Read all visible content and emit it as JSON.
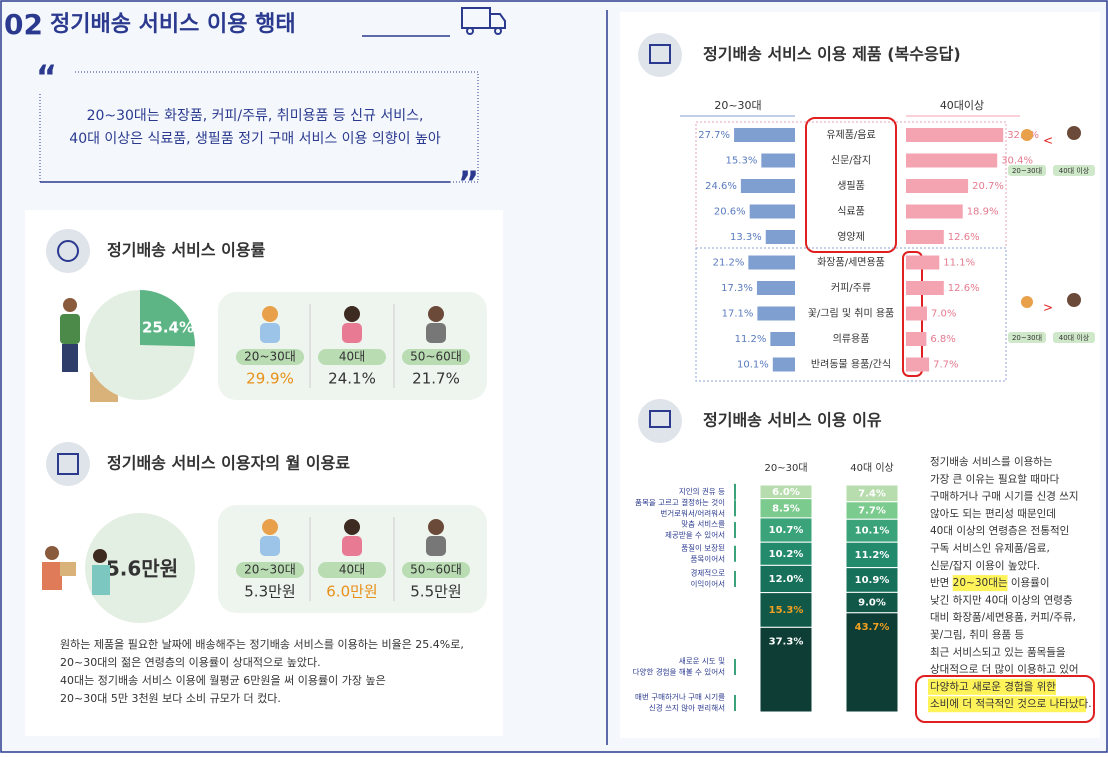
{
  "header": {
    "number": "02",
    "title": "정기배송 서비스 이용 행태"
  },
  "quote": {
    "lines": [
      "20~30대는 화장품, 커피/주류, 취미용품 등 신규 서비스,",
      "40대 이상은 식료품, 생필품 정기 구매 서비스 이용 의향이 높아"
    ]
  },
  "usage": {
    "title": "정기배송 서비스 이용률",
    "overall": {
      "value": 25.4,
      "label": "25.4%"
    },
    "groups": [
      {
        "age": "20~30대",
        "value": "29.9%"
      },
      {
        "age": "40대",
        "value": "24.1%"
      },
      {
        "age": "50~60대",
        "value": "21.7%"
      }
    ]
  },
  "fee": {
    "title": "정기배송 서비스 이용자의 월 이용료",
    "overall": "5.6만원",
    "groups": [
      {
        "age": "20~30대",
        "value": "5.3만원"
      },
      {
        "age": "40대",
        "value": "6.0만원"
      },
      {
        "age": "50~60대",
        "value": "5.5만원"
      }
    ]
  },
  "note": {
    "lines": [
      "원하는 제품을 필요한 날짜에 배송해주는 정기배송 서비스를 이용하는 비율은 25.4%로,",
      "20~30대의 젊은 연령층의 이용률이 상대적으로 높았다.",
      "40대는 정기배송 서비스 이용에 월평균 6만원을 써 이용률이 가장 높은",
      "20~30대 5만 3천원 보다 소비 규모가 더 컸다."
    ]
  },
  "products": {
    "title": "정기배송 서비스 이용 제품 (복수응답)",
    "categories": [
      "유제품/음료",
      "신문/잡지",
      "생필품",
      "식료품",
      "영양제",
      "화장품/세면용품",
      "커피/주류",
      "꽃/그림 및 취미 용품",
      "의류용품",
      "반려동물 용품/간식"
    ],
    "series": [
      {
        "name": "20~30대",
        "color": "#7f9fd1",
        "values": [
          27.7,
          15.3,
          24.6,
          20.6,
          13.3,
          21.2,
          17.3,
          17.1,
          11.2,
          10.1
        ],
        "value_labels": [
          "27.7%",
          "15.3%",
          "24.6%",
          "20.6%",
          "13.3%",
          "21.2%",
          "17.3%",
          "17.1%",
          "11.2%",
          "10.1%"
        ]
      },
      {
        "name": "40대이상",
        "color": "#f4a3b1",
        "values": [
          32.4,
          30.4,
          20.7,
          18.9,
          12.6,
          11.1,
          12.6,
          7.0,
          6.8,
          7.7
        ],
        "value_labels": [
          "32.4%",
          "30.4%",
          "20.7%",
          "18.9%",
          "12.6%",
          "11.1%",
          "12.6%",
          "7.0%",
          "6.8%",
          "7.7%"
        ]
      }
    ],
    "compare": {
      "symbols": [
        "<",
        ">"
      ],
      "young": "20~30대",
      "old": "40대 이상"
    }
  },
  "reasons": {
    "title": "정기배송 서비스 이용 이유",
    "labels": [
      [
        "지인의 권유 등"
      ],
      [
        "품목을 고르고 결정하는 것이",
        "번거로워서/어려워서"
      ],
      [
        "맞춤 서비스를",
        "제공받을 수 있어서"
      ],
      [
        "품질이 보장된",
        "품목이어서"
      ],
      [
        "경제적으로",
        "이익이어서"
      ],
      [
        "새로운 시도 및",
        "다양한 경험을 해볼 수 있어서"
      ],
      [
        "매번 구매하거나 구매 시기를",
        "신경 쓰지 않아 편리해서"
      ]
    ],
    "colors": [
      "#b7dcae",
      "#7ccb8e",
      "#3aa37a",
      "#238a6b",
      "#17715a",
      "#125848",
      "#0d3d34"
    ],
    "series": [
      {
        "name": "20~30대",
        "values": [
          6.0,
          8.5,
          10.7,
          10.2,
          12.0,
          15.3,
          37.3
        ],
        "value_labels": [
          "6.0%",
          "8.5%",
          "10.7%",
          "10.2%",
          "12.0%",
          "15.3%",
          "37.3%"
        ]
      },
      {
        "name": "40대 이상",
        "values": [
          7.4,
          7.7,
          10.1,
          11.2,
          10.9,
          9.0,
          43.7
        ],
        "value_labels": [
          "7.4%",
          "7.7%",
          "10.1%",
          "11.2%",
          "10.9%",
          "9.0%",
          "43.7%"
        ]
      }
    ],
    "text": [
      "정기배송 서비스를 이용하는",
      "가장 큰 이유는 필요할 때마다",
      "구매하거나 구매 시기를 신경 쓰지",
      "않아도 되는 편리성 때문인데",
      "40대 이상의 연령층은 전통적인",
      "구독 서비스인 유제품/음료,",
      "신문/잡지 이용이 높았다.",
      [
        "반면 ",
        "20~30대는",
        " 이용률이"
      ],
      "낮긴 하지만 40대 이상의 연령층",
      "대비 화장품/세면용품, 커피/주류,",
      "꽃/그림, 취미 용품 등",
      "최근 서비스되고 있는 품목들을",
      "상대적으로 더 많이 이용하고 있어",
      "다양하고 새로운 경험을 위한",
      "소비에 더 적극적인 것으로 나타났다."
    ]
  }
}
